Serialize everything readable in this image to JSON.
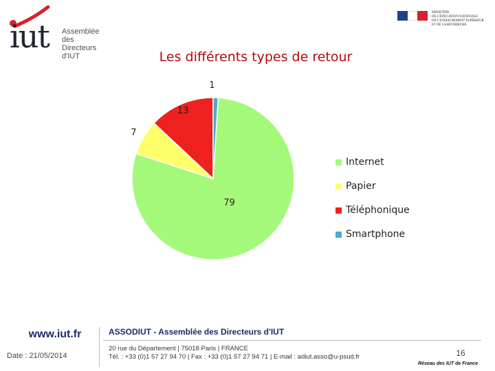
{
  "branding": {
    "iut_word": "iut",
    "iut_tagline": [
      "Assemblée",
      "des Directeurs",
      "d'IUT"
    ],
    "ministry_lines": [
      "Ministère",
      "de l'Éducation Nationale",
      "de l'Enseignement Supérieur",
      "et de la Recherche"
    ]
  },
  "chart_data": {
    "type": "pie",
    "title": "Les différents types de retour",
    "categories": [
      "Internet",
      "Papier",
      "Téléphonique",
      "Smartphone"
    ],
    "values": [
      79,
      7,
      13,
      1
    ],
    "colors": [
      "#a5f97a",
      "#ffff6a",
      "#ee2020",
      "#4bacc6"
    ],
    "data_labels": [
      "79",
      "7",
      "13",
      "1"
    ],
    "legend_position": "right"
  },
  "footer": {
    "url": "www.iut.fr",
    "date": "Date : 21/05/2014",
    "org": "ASSODIUT - Assemblée des Directeurs d'IUT",
    "address": "20 rue du Département | 75018 Paris | FRANCE",
    "contact": "Tél. : +33 (0)1 57 27 94 70 | Fax : +33 (0)1 57 27 94 71 | E-mail : adiut.asso@u-psud.fr",
    "page_number": "16",
    "network": "Réseau des IUT de France"
  }
}
